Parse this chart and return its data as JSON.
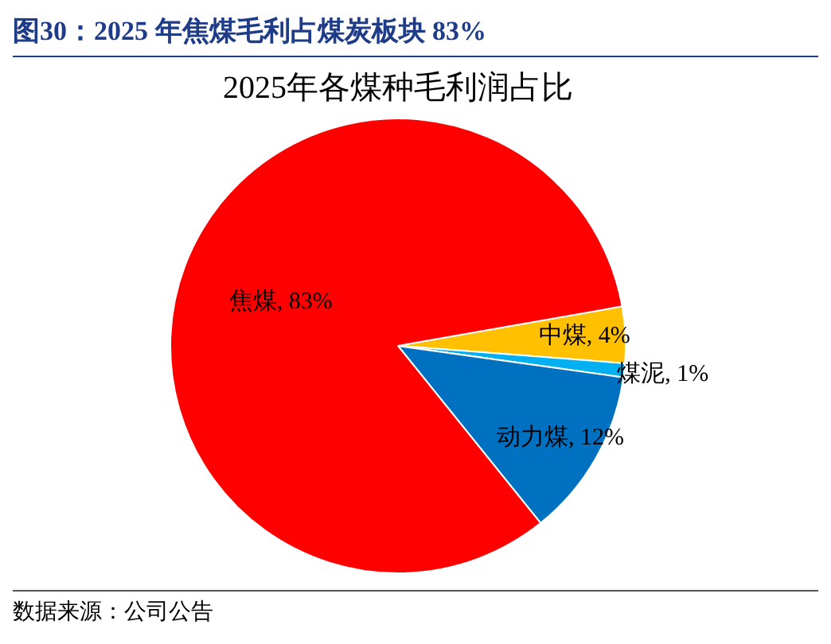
{
  "chart_data": {
    "type": "pie",
    "title": "图30：2025 年焦煤毛利占煤炭板块 83%",
    "subtitle": "2025年各煤种毛利润占比",
    "categories": [
      "中煤",
      "煤泥",
      "动力煤",
      "焦煤"
    ],
    "values": [
      4,
      1,
      12,
      83
    ],
    "colors": [
      "#ffc000",
      "#00b0f0",
      "#0070c0",
      "#ff0000"
    ],
    "value_labels": [
      "4%",
      "1%",
      "12%",
      "83%"
    ],
    "legend": false,
    "annotations": [
      "数据来源：公司公告"
    ]
  }
}
